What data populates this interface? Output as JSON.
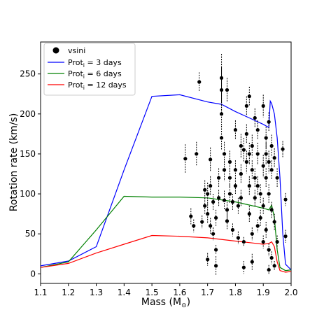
{
  "chart_data": {
    "type": "scatter",
    "xlabel": "Mass (M",
    "xlabel_sub": "⊙",
    "xlabel_close": ")",
    "ylabel": "Rotation rate (km/s)",
    "xlim": [
      1.1,
      2.0
    ],
    "ylim": [
      -12,
      290
    ],
    "xticks": [
      1.1,
      1.2,
      1.3,
      1.4,
      1.5,
      1.6,
      1.7,
      1.8,
      1.9,
      2.0
    ],
    "xtick_labels": [
      "1.1",
      "1.2",
      "1.3",
      "1.4",
      "1.5",
      "1.6",
      "1.7",
      "1.8",
      "1.9",
      "2.0"
    ],
    "yticks": [
      0,
      50,
      100,
      150,
      200,
      250
    ],
    "ytick_labels": [
      "0",
      "50",
      "100",
      "150",
      "200",
      "250"
    ],
    "grid": false,
    "legend_position": "top-left",
    "legend": [
      {
        "label": "vsini",
        "marker": "dot",
        "color": "#000000"
      },
      {
        "label_main": "Prot",
        "label_sub": "i",
        "label_rest": " = 3 days",
        "marker": "line",
        "color": "#0000ff"
      },
      {
        "label_main": "Prot",
        "label_sub": "i",
        "label_rest": " = 6 days",
        "marker": "line",
        "color": "#008000"
      },
      {
        "label_main": "Prot",
        "label_sub": "i",
        "label_rest": " = 12 days",
        "marker": "line",
        "color": "#ff0000"
      }
    ],
    "series": [
      {
        "name": "Prot_i = 3 days",
        "color": "#0000ff",
        "x": [
          1.1,
          1.2,
          1.3,
          1.4,
          1.5,
          1.6,
          1.7,
          1.75,
          1.8,
          1.85,
          1.9,
          1.92,
          1.925,
          1.93,
          1.94,
          1.95,
          1.96,
          1.97,
          1.98,
          2.0
        ],
        "y": [
          10,
          16,
          34,
          130,
          222,
          224,
          215,
          212,
          203,
          195,
          187,
          183,
          216,
          213,
          200,
          170,
          120,
          50,
          12,
          5
        ]
      },
      {
        "name": "Prot_i = 6 days",
        "color": "#008000",
        "x": [
          1.1,
          1.2,
          1.3,
          1.4,
          1.5,
          1.6,
          1.7,
          1.8,
          1.85,
          1.9,
          1.92,
          1.93,
          1.94,
          1.95,
          1.96,
          1.98,
          2.0
        ],
        "y": [
          8,
          15,
          55,
          97,
          96,
          96,
          95,
          90,
          86,
          82,
          80,
          86,
          70,
          30,
          8,
          4,
          5
        ]
      },
      {
        "name": "Prot_i = 12 days",
        "color": "#ff0000",
        "x": [
          1.1,
          1.2,
          1.3,
          1.4,
          1.5,
          1.6,
          1.7,
          1.8,
          1.85,
          1.9,
          1.92,
          1.93,
          1.94,
          1.95,
          1.96,
          1.98,
          2.0
        ],
        "y": [
          8,
          13,
          26,
          37,
          48,
          47,
          45,
          41,
          39,
          37,
          38,
          40,
          34,
          15,
          4,
          2,
          3
        ]
      }
    ],
    "points": [
      {
        "x": 1.62,
        "y": 144,
        "err": 18
      },
      {
        "x": 1.64,
        "y": 72,
        "err": 10
      },
      {
        "x": 1.65,
        "y": 60,
        "err": 8
      },
      {
        "x": 1.66,
        "y": 150,
        "err": 15
      },
      {
        "x": 1.67,
        "y": 240,
        "err": 12
      },
      {
        "x": 1.68,
        "y": 65,
        "err": 8
      },
      {
        "x": 1.69,
        "y": 105,
        "err": 12
      },
      {
        "x": 1.69,
        "y": 85,
        "err": 10
      },
      {
        "x": 1.7,
        "y": 18,
        "err": 8
      },
      {
        "x": 1.7,
        "y": 100,
        "err": 14
      },
      {
        "x": 1.7,
        "y": 75,
        "err": 12
      },
      {
        "x": 1.71,
        "y": 60,
        "err": 10
      },
      {
        "x": 1.71,
        "y": 143,
        "err": 15
      },
      {
        "x": 1.71,
        "y": 110,
        "err": 12
      },
      {
        "x": 1.72,
        "y": 90,
        "err": 10
      },
      {
        "x": 1.72,
        "y": 50,
        "err": 8
      },
      {
        "x": 1.73,
        "y": 30,
        "err": 6
      },
      {
        "x": 1.73,
        "y": 70,
        "err": 10
      },
      {
        "x": 1.73,
        "y": 10,
        "err": 12
      },
      {
        "x": 1.74,
        "y": 120,
        "err": 12
      },
      {
        "x": 1.74,
        "y": 95,
        "err": 10
      },
      {
        "x": 1.75,
        "y": 230,
        "err": 28
      },
      {
        "x": 1.75,
        "y": 245,
        "err": 30
      },
      {
        "x": 1.75,
        "y": 200,
        "err": 15
      },
      {
        "x": 1.75,
        "y": 170,
        "err": 15
      },
      {
        "x": 1.76,
        "y": 150,
        "err": 15
      },
      {
        "x": 1.76,
        "y": 130,
        "err": 14
      },
      {
        "x": 1.76,
        "y": 92,
        "err": 12
      },
      {
        "x": 1.77,
        "y": 80,
        "err": 10
      },
      {
        "x": 1.77,
        "y": 66,
        "err": 10
      },
      {
        "x": 1.77,
        "y": 230,
        "err": 15
      },
      {
        "x": 1.78,
        "y": 140,
        "err": 14
      },
      {
        "x": 1.78,
        "y": 120,
        "err": 12
      },
      {
        "x": 1.78,
        "y": 100,
        "err": 12
      },
      {
        "x": 1.79,
        "y": 90,
        "err": 10
      },
      {
        "x": 1.79,
        "y": 55,
        "err": 8
      },
      {
        "x": 1.8,
        "y": 180,
        "err": 12
      },
      {
        "x": 1.8,
        "y": 130,
        "err": 12
      },
      {
        "x": 1.8,
        "y": 110,
        "err": 10
      },
      {
        "x": 1.81,
        "y": 45,
        "err": 8
      },
      {
        "x": 1.81,
        "y": 85,
        "err": 10
      },
      {
        "x": 1.82,
        "y": 160,
        "err": 15
      },
      {
        "x": 1.82,
        "y": 125,
        "err": 12
      },
      {
        "x": 1.82,
        "y": 95,
        "err": 10
      },
      {
        "x": 1.83,
        "y": 8,
        "err": 8
      },
      {
        "x": 1.83,
        "y": 155,
        "err": 15
      },
      {
        "x": 1.83,
        "y": 40,
        "err": 6
      },
      {
        "x": 1.84,
        "y": 210,
        "err": 12
      },
      {
        "x": 1.84,
        "y": 175,
        "err": 12
      },
      {
        "x": 1.84,
        "y": 140,
        "err": 14
      },
      {
        "x": 1.85,
        "y": 222,
        "err": 12
      },
      {
        "x": 1.85,
        "y": 150,
        "err": 14
      },
      {
        "x": 1.85,
        "y": 110,
        "err": 12
      },
      {
        "x": 1.85,
        "y": 75,
        "err": 10
      },
      {
        "x": 1.86,
        "y": 160,
        "err": 14
      },
      {
        "x": 1.86,
        "y": 130,
        "err": 12
      },
      {
        "x": 1.86,
        "y": 50,
        "err": 8
      },
      {
        "x": 1.86,
        "y": 15,
        "err": 10
      },
      {
        "x": 1.87,
        "y": 195,
        "err": 12
      },
      {
        "x": 1.87,
        "y": 120,
        "err": 12
      },
      {
        "x": 1.87,
        "y": 95,
        "err": 10
      },
      {
        "x": 1.88,
        "y": 180,
        "err": 12
      },
      {
        "x": 1.88,
        "y": 150,
        "err": 14
      },
      {
        "x": 1.88,
        "y": 110,
        "err": 12
      },
      {
        "x": 1.88,
        "y": 60,
        "err": 8
      },
      {
        "x": 1.89,
        "y": 100,
        "err": 12
      },
      {
        "x": 1.89,
        "y": 70,
        "err": 10
      },
      {
        "x": 1.9,
        "y": 210,
        "err": 14
      },
      {
        "x": 1.9,
        "y": 135,
        "err": 14
      },
      {
        "x": 1.9,
        "y": 85,
        "err": 10
      },
      {
        "x": 1.9,
        "y": 40,
        "err": 8
      },
      {
        "x": 1.91,
        "y": 170,
        "err": 14
      },
      {
        "x": 1.91,
        "y": 150,
        "err": 14
      },
      {
        "x": 1.91,
        "y": 120,
        "err": 12
      },
      {
        "x": 1.91,
        "y": 55,
        "err": 10
      },
      {
        "x": 1.92,
        "y": 190,
        "err": 12
      },
      {
        "x": 1.92,
        "y": 140,
        "err": 14
      },
      {
        "x": 1.92,
        "y": 100,
        "err": 12
      },
      {
        "x": 1.92,
        "y": 30,
        "err": 8
      },
      {
        "x": 1.92,
        "y": 5,
        "err": 6
      },
      {
        "x": 1.93,
        "y": 160,
        "err": 14
      },
      {
        "x": 1.93,
        "y": 130,
        "err": 12
      },
      {
        "x": 1.93,
        "y": 80,
        "err": 10
      },
      {
        "x": 1.93,
        "y": 20,
        "err": 8
      },
      {
        "x": 1.94,
        "y": 145,
        "err": 12
      },
      {
        "x": 1.94,
        "y": 65,
        "err": 10
      },
      {
        "x": 1.94,
        "y": 10,
        "err": 6
      },
      {
        "x": 1.95,
        "y": 120,
        "err": 12
      },
      {
        "x": 1.95,
        "y": 40,
        "err": 8
      },
      {
        "x": 1.97,
        "y": 156,
        "err": 10
      },
      {
        "x": 1.98,
        "y": 93,
        "err": 8
      },
      {
        "x": 1.98,
        "y": 47,
        "err": 8
      }
    ]
  }
}
